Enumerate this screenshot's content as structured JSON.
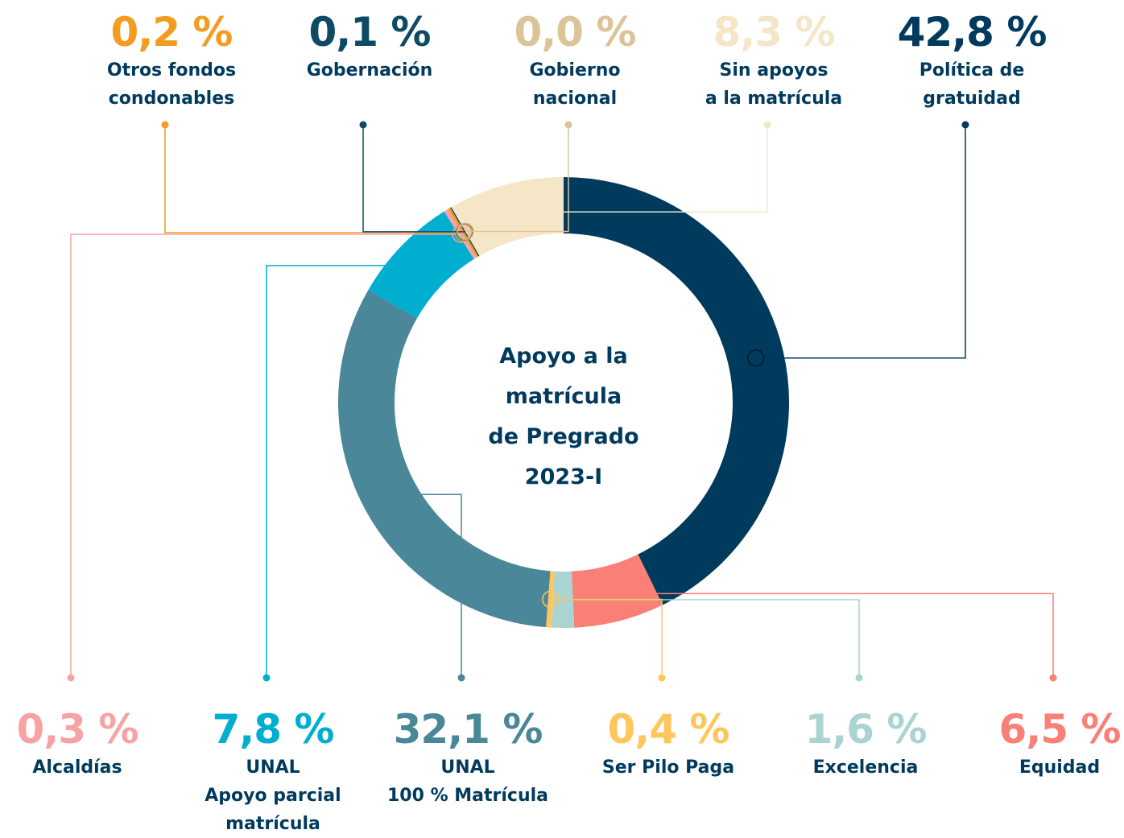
{
  "chart_data": {
    "type": "donut",
    "title": "Apoyo a la\nmatrícula\nde Pregrado\n2023-I",
    "categories": [
      "Política de\ngratuidad",
      "Equidad",
      "Excelencia",
      "Ser Pilo Paga",
      "UNAL\n100 % Matrícula",
      "UNAL\nApoyo parcial\nmatrícula",
      "Alcaldías",
      "Otros fondos\ncondonables",
      "Gobernación",
      "Gobierno\nnacional",
      "Sin apoyos\na la matrícula"
    ],
    "values": [
      42.8,
      6.5,
      1.6,
      0.4,
      32.1,
      7.8,
      0.3,
      0.2,
      0.1,
      0.0,
      8.3
    ],
    "value_labels": [
      "42,8 %",
      "6,5 %",
      "1,6 %",
      "0,4 %",
      "32,1 %",
      "7,8 %",
      "0,3 %",
      "0,2 %",
      "0,1 %",
      "0,0 %",
      "8,3 %"
    ],
    "colors": [
      "#003a5d",
      "#f97f77",
      "#a9d4d2",
      "#ffc65c",
      "#4a8799",
      "#00aecf",
      "#f7a3a6",
      "#f39c1f",
      "#0d4a63",
      "#dcc49a",
      "#f6e6c8"
    ]
  }
}
